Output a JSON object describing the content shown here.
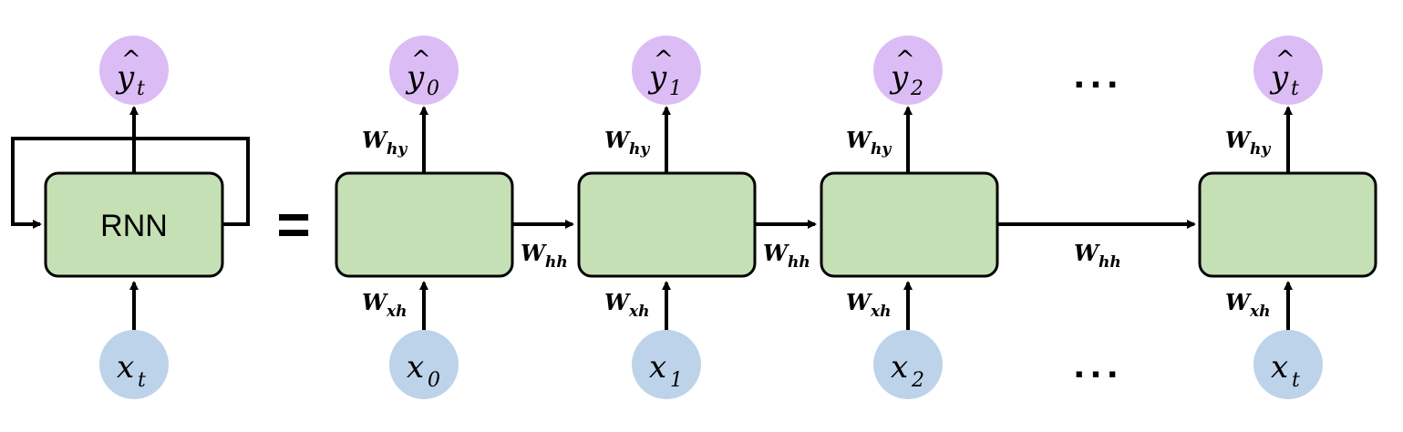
{
  "diagram": {
    "rolled": {
      "cell_label": "RNN",
      "output": {
        "base": "y",
        "hat": "^",
        "sub": "t"
      },
      "input": {
        "base": "x",
        "sub": "t"
      }
    },
    "equals": "=",
    "unrolled": [
      {
        "output": {
          "base": "y",
          "hat": "^",
          "sub": "0"
        },
        "input": {
          "base": "x",
          "sub": "0"
        },
        "why": {
          "base": "W",
          "sub": "hy"
        },
        "wxh": {
          "base": "W",
          "sub": "xh"
        }
      },
      {
        "output": {
          "base": "y",
          "hat": "^",
          "sub": "1"
        },
        "input": {
          "base": "x",
          "sub": "1"
        },
        "why": {
          "base": "W",
          "sub": "hy"
        },
        "wxh": {
          "base": "W",
          "sub": "xh"
        }
      },
      {
        "output": {
          "base": "y",
          "hat": "^",
          "sub": "2"
        },
        "input": {
          "base": "x",
          "sub": "2"
        },
        "why": {
          "base": "W",
          "sub": "hy"
        },
        "wxh": {
          "base": "W",
          "sub": "xh"
        }
      },
      {
        "output": {
          "base": "y",
          "hat": "^",
          "sub": "t"
        },
        "input": {
          "base": "x",
          "sub": "t"
        },
        "why": {
          "base": "W",
          "sub": "hy"
        },
        "wxh": {
          "base": "W",
          "sub": "xh"
        }
      }
    ],
    "whh": [
      {
        "base": "W",
        "sub": "hh"
      },
      {
        "base": "W",
        "sub": "hh"
      },
      {
        "base": "W",
        "sub": "hh"
      }
    ],
    "ellipsis_top": "...",
    "ellipsis_bottom": "..."
  }
}
